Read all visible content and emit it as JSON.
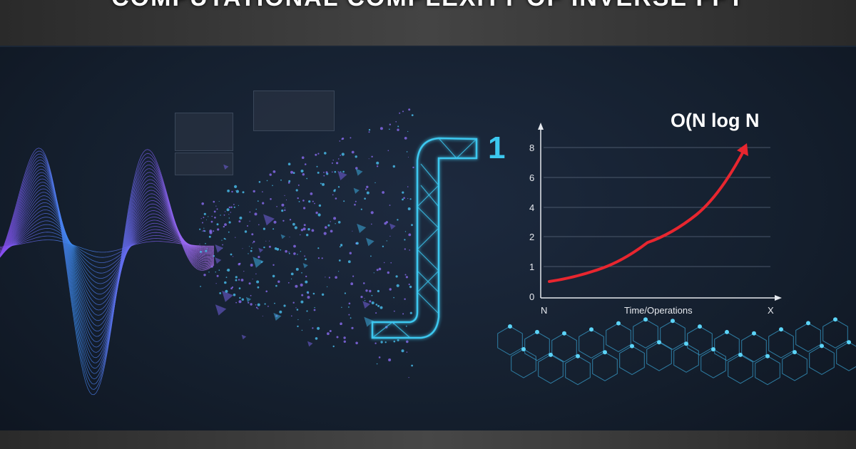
{
  "title": "COMPUTATIONAL COMPLEXITY OF INVERSE FFT",
  "integral_superscript": "1",
  "chart_data": {
    "type": "line",
    "title": "O(N log N",
    "xlabel": "Time/Operations",
    "x_start_label": "N",
    "x_end_label": "X",
    "y_ticks": [
      "0",
      "1",
      "2",
      "4",
      "6",
      "8"
    ],
    "grid": true,
    "series": [
      {
        "color": "#e8262f",
        "x": [
          0,
          0.25,
          0.5,
          0.75,
          1.0
        ],
        "y": [
          0.5,
          0.9,
          1.8,
          3.5,
          8
        ]
      }
    ]
  },
  "colors": {
    "curve": "#e8262f",
    "accent": "#38c8f0",
    "wave_purple": "#8a4cf0",
    "wave_blue": "#3a8cf0"
  }
}
